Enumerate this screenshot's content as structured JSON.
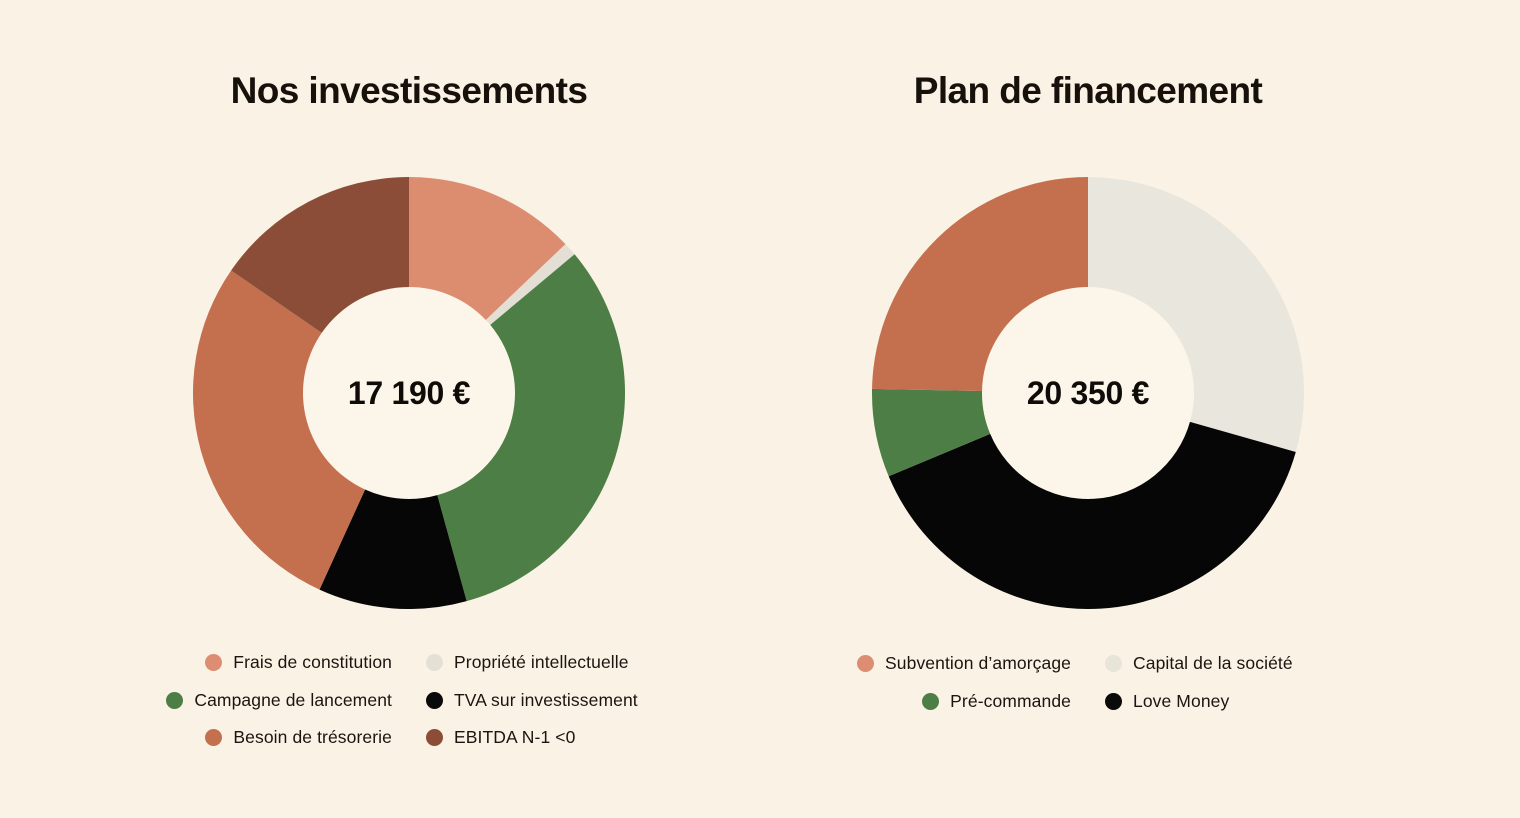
{
  "page": {
    "background": "#FAF2E5",
    "text_color": "#18120C"
  },
  "chart_data": [
    {
      "type": "pie",
      "subtype": "donut",
      "title": "Nos investissements",
      "center_label": "17 190 €",
      "total_eur": 17190,
      "currency": "EUR",
      "hole_color": "#FCF5E9",
      "start_angle": "top, clockwise",
      "slices": [
        {
          "label": "Frais de constitution",
          "color": "#DC8D70",
          "percent_est": 12.9
        },
        {
          "label": "Propriété intellectuelle",
          "color": "#E4DFD4",
          "percent_est": 1.0
        },
        {
          "label": "Campagne de lancement",
          "color": "#4D7E45",
          "percent_est": 31.8
        },
        {
          "label": "TVA sur investissement",
          "color": "#060606",
          "percent_est": 11.1
        },
        {
          "label": "Besoin de trésorerie",
          "color": "#C4704F",
          "percent_est": 27.8
        },
        {
          "label": "EBITDA N-1 <0",
          "color": "#8C4D38",
          "percent_est": 15.4
        }
      ],
      "legend_rows": [
        [
          {
            "label": "Frais de constitution",
            "color": "#DD8E72"
          },
          {
            "label": "Propriété intellectuelle",
            "color": "#E5E0D6"
          }
        ],
        [
          {
            "label": "Campagne de lancement",
            "color": "#4D7E45"
          },
          {
            "label": "TVA sur investissement",
            "color": "#0A0A0A"
          }
        ],
        [
          {
            "label": "Besoin de trésorerie",
            "color": "#C4704F"
          },
          {
            "label": "EBITDA N-1 <0",
            "color": "#8C4D38"
          }
        ]
      ]
    },
    {
      "type": "pie",
      "subtype": "donut",
      "title": "Plan de financement",
      "center_label": "20 350 €",
      "total_eur": 20350,
      "currency": "EUR",
      "hole_color": "#FCF5E9",
      "start_angle": "top, clockwise",
      "slices": [
        {
          "label": "Capital de la société",
          "color": "#E9E7DD",
          "percent_est": 29.4
        },
        {
          "label": "Love Money",
          "color": "#060606",
          "percent_est": 39.3
        },
        {
          "label": "Pré-commande",
          "color": "#4D7E45",
          "percent_est": 6.6
        },
        {
          "label": "Subvention d’amorçage",
          "color": "#C4704F",
          "percent_est": 24.7
        }
      ],
      "legend_rows": [
        [
          {
            "label": "Subvention d’amorçage",
            "color": "#DD8E72"
          },
          {
            "label": "Capital de la société",
            "color": "#E7E4DA"
          }
        ],
        [
          {
            "label": "Pré-commande",
            "color": "#4D7E45"
          },
          {
            "label": "Love Money",
            "color": "#0A0A0A"
          }
        ]
      ]
    }
  ]
}
